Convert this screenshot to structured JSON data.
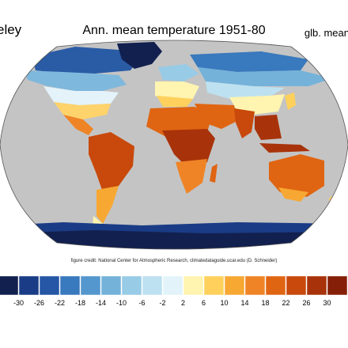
{
  "header": {
    "left_text": "eley",
    "title": "Ann. mean temperature 1951-80",
    "right_text": "glb. mean"
  },
  "credit": "figure credit: National Center for Atmospheric Research, climatedataguide.ucar.edu (D. Schneider)",
  "colorbar": {
    "ticks": [
      "-30",
      "-26",
      "-22",
      "-18",
      "-14",
      "-10",
      "-6",
      "-2",
      "2",
      "6",
      "10",
      "14",
      "18",
      "22",
      "26",
      "30"
    ],
    "colors": [
      "#12204f",
      "#1a3c86",
      "#2657a6",
      "#3979bd",
      "#5497ce",
      "#74b2da",
      "#98cbe6",
      "#bde1f0",
      "#e2f4fa",
      "#fff4b0",
      "#ffd15c",
      "#f7a833",
      "#ef8426",
      "#e06512",
      "#c8490b",
      "#a8330a",
      "#861f07"
    ]
  },
  "map": {
    "projection": "Robinson",
    "ocean_color": "#c4c4c4",
    "shown_value_range": [
      -30,
      30
    ]
  }
}
